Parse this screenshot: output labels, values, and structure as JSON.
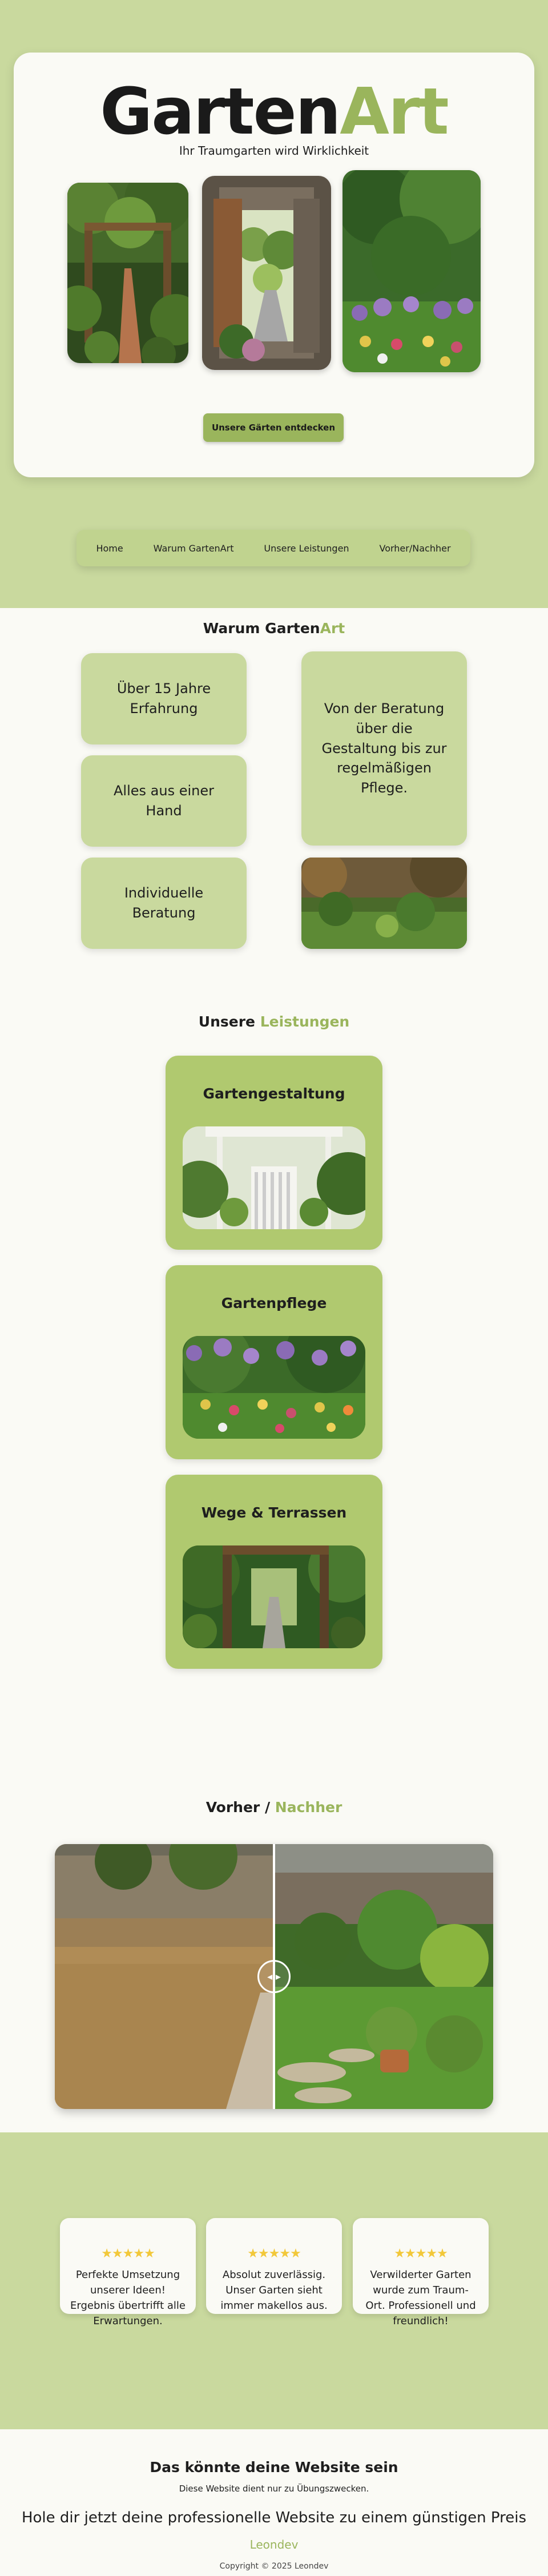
{
  "brand": {
    "logo_part1": "Garten",
    "logo_part2": "Art",
    "tagline": "Ihr Traumgarten wird Wirklichkeit"
  },
  "hero": {
    "cta_label": "Unsere Gärten entdecken"
  },
  "nav": {
    "items": [
      "Home",
      "Warum GartenArt",
      "Unsere Leistungen",
      "Vorher/Nachher"
    ]
  },
  "why": {
    "title_part1": "Warum Garten",
    "title_part2": "Art",
    "box1": "Über 15 Jahre Erfahrung",
    "box2": "Alles aus einer Hand",
    "box3": "Individuelle Beratung",
    "box4": "Von der Beratung über die Gestaltung bis zur regelmäßigen Pflege."
  },
  "services": {
    "title_part1": "Unsere ",
    "title_part2": "Leistungen",
    "items": [
      {
        "title": "Gartengestaltung"
      },
      {
        "title": "Gartenpflege"
      },
      {
        "title": "Wege & Terrassen"
      }
    ]
  },
  "before_after": {
    "title_part1": "Vorher / ",
    "title_part2": "Nachher",
    "handle_glyph": "◂ ▸"
  },
  "testimonials": [
    {
      "stars": "★★★★★",
      "text": "Perfekte Umsetzung unserer Ideen! Ergebnis übertrifft alle Erwartungen."
    },
    {
      "stars": "★★★★★",
      "text": "Absolut zuverlässig. Unser Garten sieht immer makellos aus."
    },
    {
      "stars": "★★★★★",
      "text": "Verwilderter Garten wurde zum Traum-Ort. Professionell und freundlich!"
    }
  ],
  "footer": {
    "headline": "Das könnte deine Website sein",
    "disclaimer": "Diese Website dient nur zu Übungszwecken.",
    "offer": "Hole dir jetzt deine professionelle Website zu einem günstigen Preis",
    "author_link": "Leondev",
    "copyright": "Copyright © 2025 Leondev"
  },
  "colors": {
    "accent": "#9ab55c",
    "band": "#c9d99e",
    "card": "#b0c96f",
    "surface": "#fafaf5",
    "star": "#f2c83a"
  }
}
